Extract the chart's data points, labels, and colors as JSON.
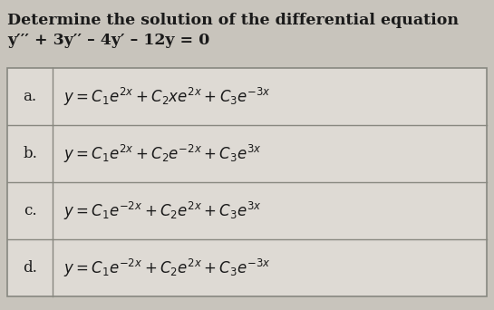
{
  "title_line1": "Determine the solution of the differential equation",
  "title_line2": "y′′′ + 3y′′ – 4y′ – 12y = 0",
  "bg_color": "#c8c4bc",
  "table_bg": "#dedad4",
  "table_border_color": "#888880",
  "options": [
    {
      "label": "a.",
      "formula": "$y = C_1e^{2x} + C_2xe^{2x} + C_3e^{-3x}$"
    },
    {
      "label": "b.",
      "formula": "$y = C_1e^{2x} + C_2e^{-2x} + C_3e^{3x}$"
    },
    {
      "label": "c.",
      "formula": "$y = C_1e^{-2x} + C_2e^{2x} + C_3e^{3x}$"
    },
    {
      "label": "d.",
      "formula": "$y = C_1e^{-2x} + C_2e^{2x} + C_3e^{-3x}$"
    }
  ],
  "title_fontsize": 12.5,
  "option_fontsize": 12,
  "label_fontsize": 12,
  "text_color": "#1a1a1a",
  "fig_width": 5.45,
  "fig_height": 3.42,
  "dpi": 100
}
